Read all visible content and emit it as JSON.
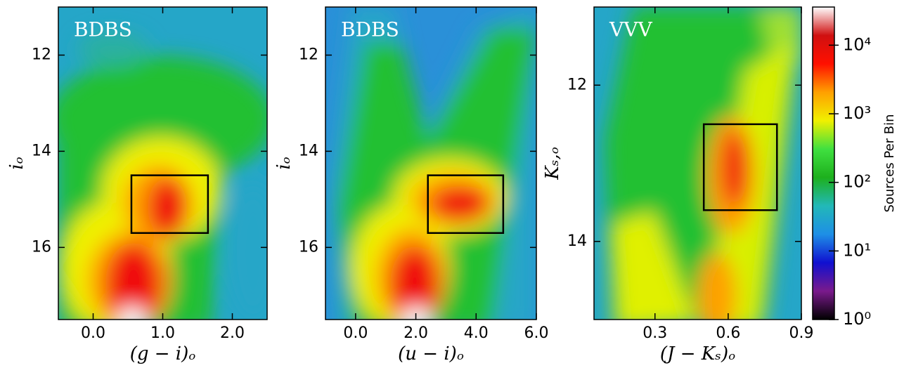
{
  "chart_data": [
    {
      "type": "hess",
      "title": "BDBS",
      "xlabel": "(g − i)ₒ",
      "ylabel": "iₒ",
      "xlim": [
        -0.5,
        2.5
      ],
      "ylim": [
        11,
        17.5
      ],
      "y_inverted": true,
      "xticks": [
        {
          "value": 0,
          "label": "0.0"
        },
        {
          "value": 1,
          "label": "1.0"
        },
        {
          "value": 2,
          "label": "2.0"
        }
      ],
      "yticks": [
        12,
        14,
        16
      ],
      "box": {
        "x": [
          0.55,
          1.65
        ],
        "y": [
          14.5,
          15.7
        ]
      }
    },
    {
      "type": "hess",
      "title": "BDBS",
      "xlabel": "(u − i)ₒ",
      "ylabel": "iₒ",
      "xlim": [
        -1,
        6
      ],
      "ylim": [
        11,
        17.5
      ],
      "y_inverted": true,
      "xticks": [
        {
          "value": 0,
          "label": "0.0"
        },
        {
          "value": 2,
          "label": "2.0"
        },
        {
          "value": 4,
          "label": "4.0"
        },
        {
          "value": 6,
          "label": "6.0"
        }
      ],
      "yticks": [
        12,
        14,
        16
      ],
      "box": {
        "x": [
          2.4,
          4.9
        ],
        "y": [
          14.5,
          15.7
        ]
      }
    },
    {
      "type": "hess",
      "title": "VVV",
      "xlabel": "(J − Kₛ)ₒ",
      "ylabel": "Kₛ,ₒ",
      "xlim": [
        0.05,
        0.9
      ],
      "ylim": [
        11,
        15
      ],
      "y_inverted": true,
      "xticks": [
        0.3,
        0.6,
        0.9
      ],
      "yticks": [
        12,
        14
      ],
      "box": {
        "x": [
          0.5,
          0.8
        ],
        "y": [
          12.5,
          13.6
        ]
      }
    },
    {
      "type": "colorbar",
      "label": "Sources Per Bin",
      "log": true,
      "clim": [
        1,
        36000
      ],
      "ticks": [
        {
          "value": 1,
          "label": "10⁰"
        },
        {
          "value": 10,
          "label": "10¹"
        },
        {
          "value": 100,
          "label": "10²"
        },
        {
          "value": 1000,
          "label": "10³"
        },
        {
          "value": 10000,
          "label": "10⁴"
        }
      ],
      "colors": [
        "#000000",
        "#7a1a8c",
        "#1010d0",
        "#1e8fe6",
        "#22b8b8",
        "#1db01d",
        "#40e040",
        "#f0f000",
        "#ffa000",
        "#ff1000",
        "#d01010",
        "#ffffff"
      ]
    }
  ]
}
